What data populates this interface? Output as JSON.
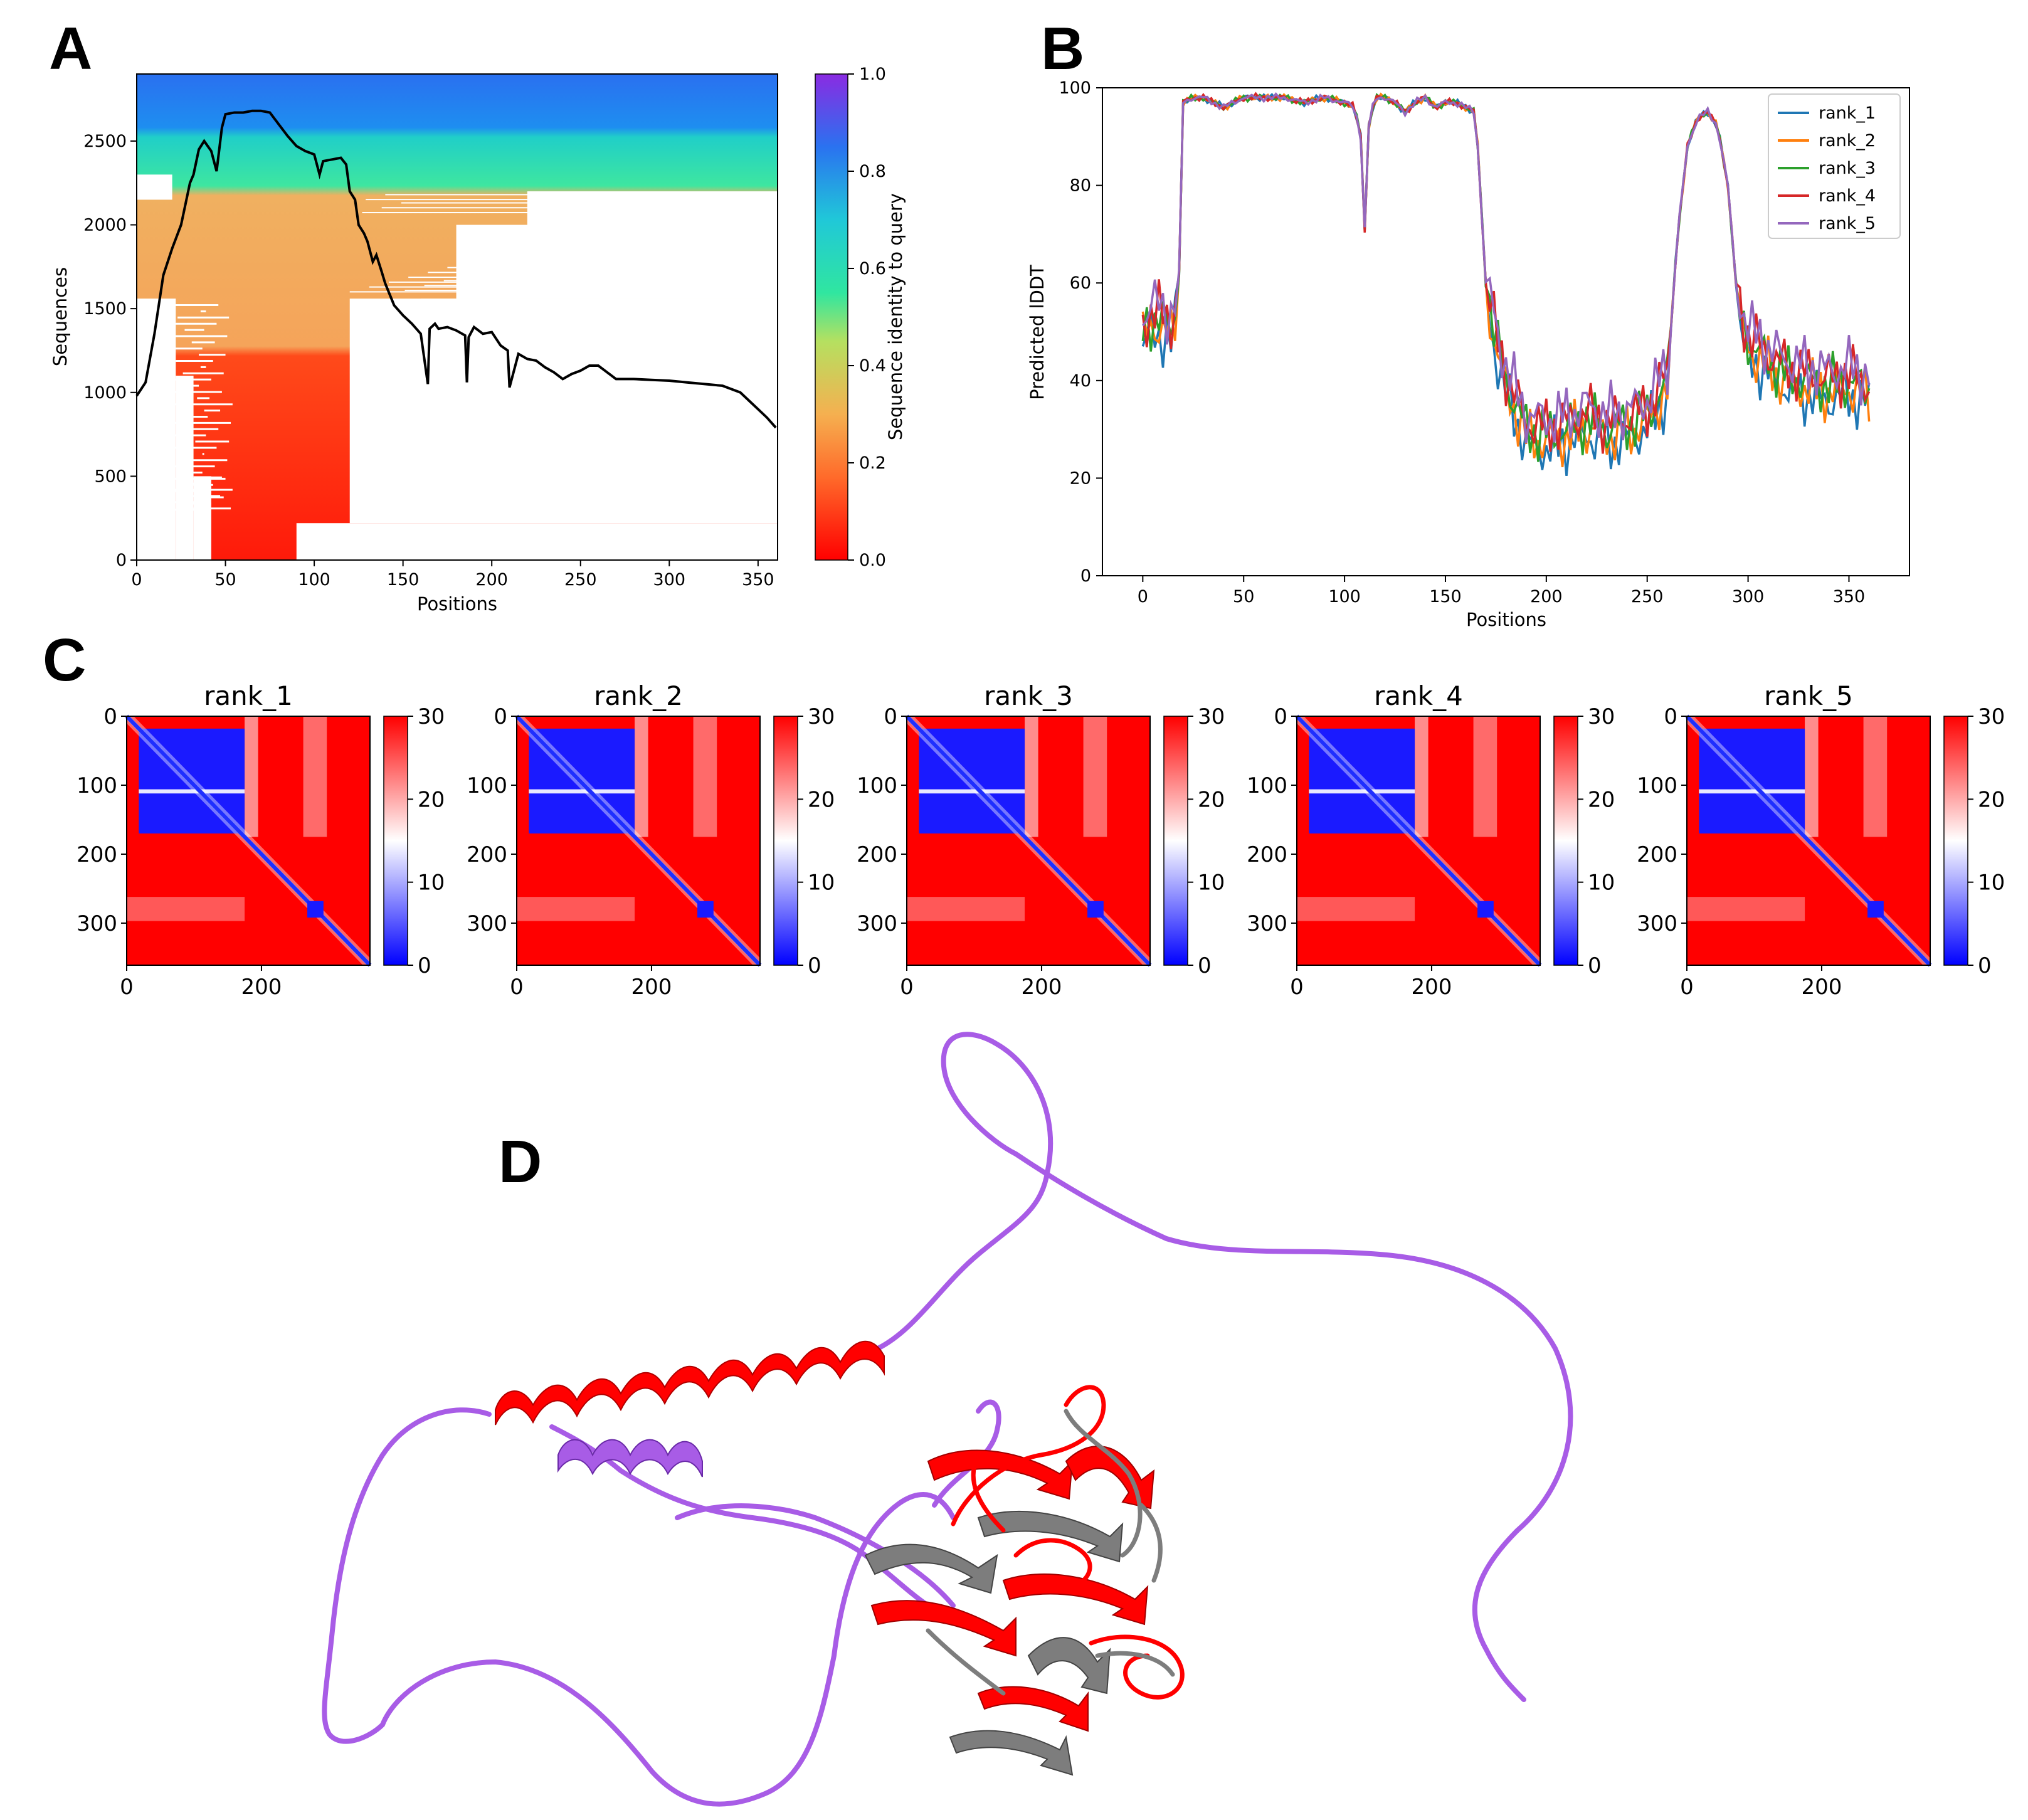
{
  "panels": {
    "A": "A",
    "B": "B",
    "C": "C",
    "D": "D"
  },
  "chart_data": [
    {
      "id": "A",
      "type": "heatmap",
      "title": "",
      "xlabel": "Positions",
      "ylabel": "Sequences",
      "xlim": [
        0,
        361
      ],
      "ylim": [
        0,
        2900
      ],
      "xticks": [
        0,
        50,
        100,
        150,
        200,
        250,
        300,
        350
      ],
      "yticks": [
        0,
        500,
        1000,
        1500,
        2000,
        2500
      ],
      "colorbar": {
        "label": "Sequence identity to query",
        "ticks": [
          0.0,
          0.2,
          0.4,
          0.6,
          0.8,
          1.0
        ],
        "tick_labels": [
          "0.0",
          "0.2",
          "0.4",
          "0.6",
          "0.8",
          "1.0"
        ]
      },
      "coverage_line": {
        "x": [
          0,
          5,
          10,
          15,
          20,
          25,
          30,
          32,
          35,
          38,
          40,
          42,
          45,
          48,
          50,
          55,
          60,
          65,
          70,
          75,
          80,
          85,
          90,
          95,
          100,
          103,
          105,
          110,
          115,
          118,
          120,
          123,
          125,
          128,
          130,
          133,
          135,
          138,
          140,
          145,
          150,
          155,
          160,
          164,
          165,
          168,
          170,
          175,
          180,
          185,
          186,
          187,
          190,
          195,
          200,
          205,
          209,
          210,
          215,
          220,
          225,
          230,
          235,
          240,
          245,
          250,
          255,
          260,
          265,
          270,
          280,
          290,
          300,
          310,
          320,
          330,
          340,
          345,
          350,
          355,
          360
        ],
        "y": [
          980,
          1060,
          1350,
          1700,
          1860,
          2000,
          2250,
          2300,
          2450,
          2500,
          2470,
          2440,
          2320,
          2580,
          2660,
          2670,
          2670,
          2680,
          2680,
          2670,
          2600,
          2530,
          2470,
          2440,
          2420,
          2300,
          2380,
          2390,
          2400,
          2360,
          2200,
          2150,
          2000,
          1950,
          1900,
          1780,
          1820,
          1720,
          1650,
          1520,
          1460,
          1410,
          1350,
          1050,
          1380,
          1410,
          1380,
          1390,
          1370,
          1340,
          1060,
          1330,
          1390,
          1350,
          1360,
          1280,
          1250,
          1030,
          1230,
          1200,
          1190,
          1150,
          1120,
          1080,
          1110,
          1130,
          1160,
          1160,
          1120,
          1080,
          1080,
          1075,
          1070,
          1060,
          1050,
          1040,
          1000,
          950,
          900,
          850,
          790
        ]
      }
    },
    {
      "id": "B",
      "type": "line",
      "title": "",
      "xlabel": "Positions",
      "ylabel": "Predicted lDDT",
      "xlim": [
        -20,
        380
      ],
      "ylim": [
        0,
        100
      ],
      "xticks": [
        0,
        50,
        100,
        150,
        200,
        250,
        300,
        350
      ],
      "yticks": [
        0,
        20,
        40,
        60,
        80,
        100
      ],
      "legend": {
        "placement": "top-right"
      },
      "profile": {
        "x": [
          0,
          5,
          10,
          15,
          18,
          20,
          25,
          30,
          35,
          40,
          45,
          50,
          60,
          70,
          80,
          90,
          100,
          105,
          108,
          110,
          112,
          115,
          120,
          125,
          130,
          135,
          140,
          145,
          150,
          155,
          160,
          165,
          170,
          175,
          180,
          190,
          200,
          210,
          220,
          230,
          240,
          250,
          260,
          265,
          270,
          275,
          280,
          285,
          290,
          295,
          300,
          310,
          320,
          330,
          340,
          350,
          360
        ],
        "y": [
          50,
          53,
          52,
          50,
          62,
          97,
          98,
          98,
          97,
          96,
          97,
          98,
          98,
          98,
          97,
          98,
          97,
          96,
          90,
          71,
          92,
          98,
          98,
          97,
          95,
          97,
          98,
          96,
          97,
          97,
          96,
          95,
          60,
          48,
          40,
          30,
          29,
          30,
          32,
          30,
          31,
          33,
          40,
          70,
          88,
          94,
          95,
          92,
          80,
          55,
          48,
          44,
          41,
          40,
          39,
          40,
          38
        ]
      },
      "series": [
        {
          "name": "rank_1",
          "color": "#1f77b4"
        },
        {
          "name": "rank_2",
          "color": "#ff7f0e"
        },
        {
          "name": "rank_3",
          "color": "#2ca02c"
        },
        {
          "name": "rank_4",
          "color": "#d62728"
        },
        {
          "name": "rank_5",
          "color": "#9467bd"
        }
      ]
    },
    {
      "id": "C",
      "type": "heatmap",
      "title": "",
      "matrix_size": 361,
      "xticks": [
        0,
        200
      ],
      "yticks": [
        0,
        100,
        200,
        300
      ],
      "colorbar": {
        "ticks": [
          0,
          10,
          20,
          30
        ],
        "tick_labels": [
          "0",
          "10",
          "20",
          "30"
        ]
      },
      "maps": [
        {
          "title": "rank_1"
        },
        {
          "title": "rank_2"
        },
        {
          "title": "rank_3"
        },
        {
          "title": "rank_4"
        },
        {
          "title": "rank_5"
        }
      ]
    }
  ],
  "structure_colors": {
    "helix_red": "#ff0000",
    "coil_purple": "#a85ce6",
    "sheet_gray": "#7d7d7d"
  }
}
